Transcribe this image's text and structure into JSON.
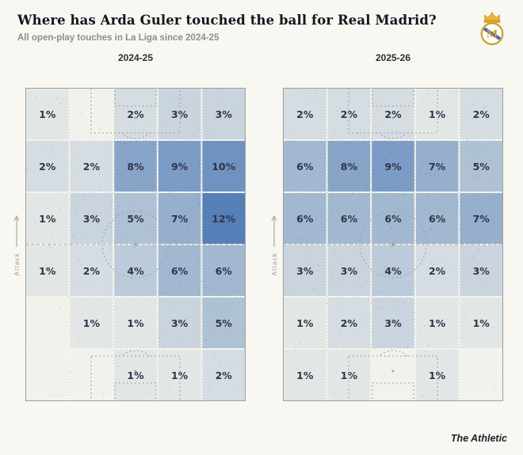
{
  "header": {
    "title": "Where has Arda Guler touched the ball for Real Madrid?",
    "subtitle": "All open-play touches in La Liga since 2024-25"
  },
  "branding": {
    "crest": "real-madrid-crest",
    "footer_logo": "The Athletic"
  },
  "chart_data": [
    {
      "type": "heatmap",
      "title": "2024-25",
      "axis_label": "Attack",
      "unit": "%",
      "rows": 6,
      "cols": 5,
      "values": [
        [
          1,
          null,
          2,
          3,
          3
        ],
        [
          2,
          2,
          8,
          9,
          10
        ],
        [
          1,
          3,
          5,
          7,
          12
        ],
        [
          1,
          2,
          4,
          6,
          6
        ],
        [
          null,
          1,
          1,
          3,
          5
        ],
        [
          null,
          null,
          1,
          1,
          2
        ]
      ]
    },
    {
      "type": "heatmap",
      "title": "2025-26",
      "axis_label": "Attack",
      "unit": "%",
      "rows": 6,
      "cols": 5,
      "values": [
        [
          2,
          2,
          2,
          1,
          2
        ],
        [
          6,
          8,
          9,
          7,
          5
        ],
        [
          6,
          6,
          6,
          6,
          7
        ],
        [
          3,
          3,
          4,
          2,
          3
        ],
        [
          1,
          2,
          3,
          1,
          1
        ],
        [
          1,
          1,
          null,
          1,
          null
        ]
      ]
    }
  ],
  "style": {
    "background": "#f8f7f2",
    "blank_color": "#f2f2ec",
    "min_color": "#eff0ea",
    "max_color": "#5580b8",
    "max_value": 12,
    "value_text_color": "#33334a"
  }
}
